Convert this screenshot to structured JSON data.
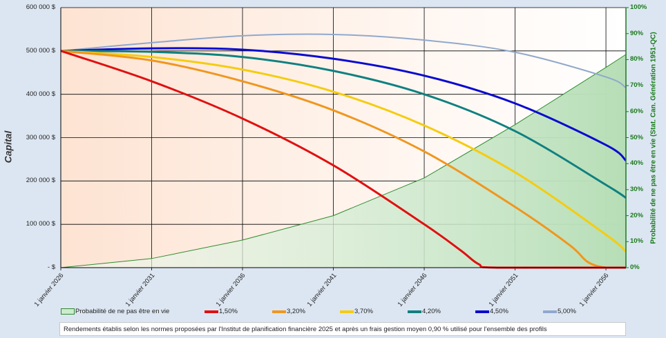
{
  "chart_data": {
    "type": "line",
    "title": "",
    "ylabel": "Capital",
    "y2label": "Probabilité de ne pas être en vie (Stat. Can. Génération 1951-QC)",
    "ylim": [
      0,
      600000
    ],
    "y2lim": [
      0,
      100
    ],
    "xlim": [
      2026,
      2057.1
    ],
    "y_ticks": [
      "-   $",
      "100 000  $",
      "200 000  $",
      "300 000  $",
      "400 000  $",
      "500 000  $",
      "600 000  $"
    ],
    "y2_ticks": [
      "0%",
      "10%",
      "20%",
      "30%",
      "40%",
      "50%",
      "60%",
      "70%",
      "80%",
      "90%",
      "100%"
    ],
    "x_ticks": [
      "1 janvier 2026",
      "1 janvier 2031",
      "1 janvier 2036",
      "1 janvier 2041",
      "1 janvier 2046",
      "1 janvier 2051",
      "1 janvier 2056"
    ],
    "x_tick_years": [
      2026,
      2031,
      2036,
      2041,
      2046,
      2051,
      2056
    ],
    "grid": true,
    "legend_position": "bottom",
    "area": {
      "name": "Probabilité de ne pas être en vie",
      "color": "#2e8b2e",
      "x": [
        2026,
        2031,
        2036,
        2041,
        2046,
        2051,
        2056,
        2057.1
      ],
      "values": [
        0,
        3.5,
        10.6,
        20,
        34.5,
        55,
        77,
        82
      ]
    },
    "series": [
      {
        "name": "1,50%",
        "color": "#e01010",
        "x": [
          2026,
          2031,
          2036,
          2041,
          2046,
          2048,
          2049,
          2050,
          2057.1
        ],
        "values": [
          500000,
          430000,
          344000,
          236000,
          100000,
          40000,
          8000,
          0,
          0
        ]
      },
      {
        "name": "3,20%",
        "color": "#f0961e",
        "x": [
          2026,
          2031,
          2036,
          2041,
          2046,
          2051,
          2054,
          2055,
          2056,
          2057.1
        ],
        "values": [
          500000,
          478000,
          430000,
          363000,
          268000,
          140000,
          52000,
          13000,
          0,
          0
        ]
      },
      {
        "name": "3,70%",
        "color": "#f5cc10",
        "x": [
          2026,
          2031,
          2036,
          2041,
          2046,
          2051,
          2056,
          2057.1
        ],
        "values": [
          500000,
          486000,
          457000,
          406000,
          328000,
          220000,
          76000,
          37000
        ]
      },
      {
        "name": "4,20%",
        "color": "#108080",
        "x": [
          2026,
          2031,
          2036,
          2041,
          2046,
          2051,
          2056,
          2057.1
        ],
        "values": [
          500000,
          498000,
          486000,
          454000,
          400000,
          315000,
          191000,
          161000
        ]
      },
      {
        "name": "4,50%",
        "color": "#0a0ad0",
        "x": [
          2026,
          2031,
          2036,
          2041,
          2046,
          2051,
          2056,
          2057.1
        ],
        "values": [
          500000,
          506000,
          503000,
          482000,
          443000,
          379000,
          283000,
          247000
        ]
      },
      {
        "name": "5,00%",
        "color": "#90a8cc",
        "x": [
          2026,
          2031,
          2036,
          2041,
          2046,
          2051,
          2056,
          2057.1
        ],
        "values": [
          500000,
          519000,
          535000,
          538000,
          525000,
          497000,
          440000,
          415000
        ]
      }
    ]
  },
  "note": "Rendements établis selon les normes proposées par l'Institut de planification financière 2025 et après un frais gestion moyen 0,90 % utilisé pour l'ensemble des profils"
}
